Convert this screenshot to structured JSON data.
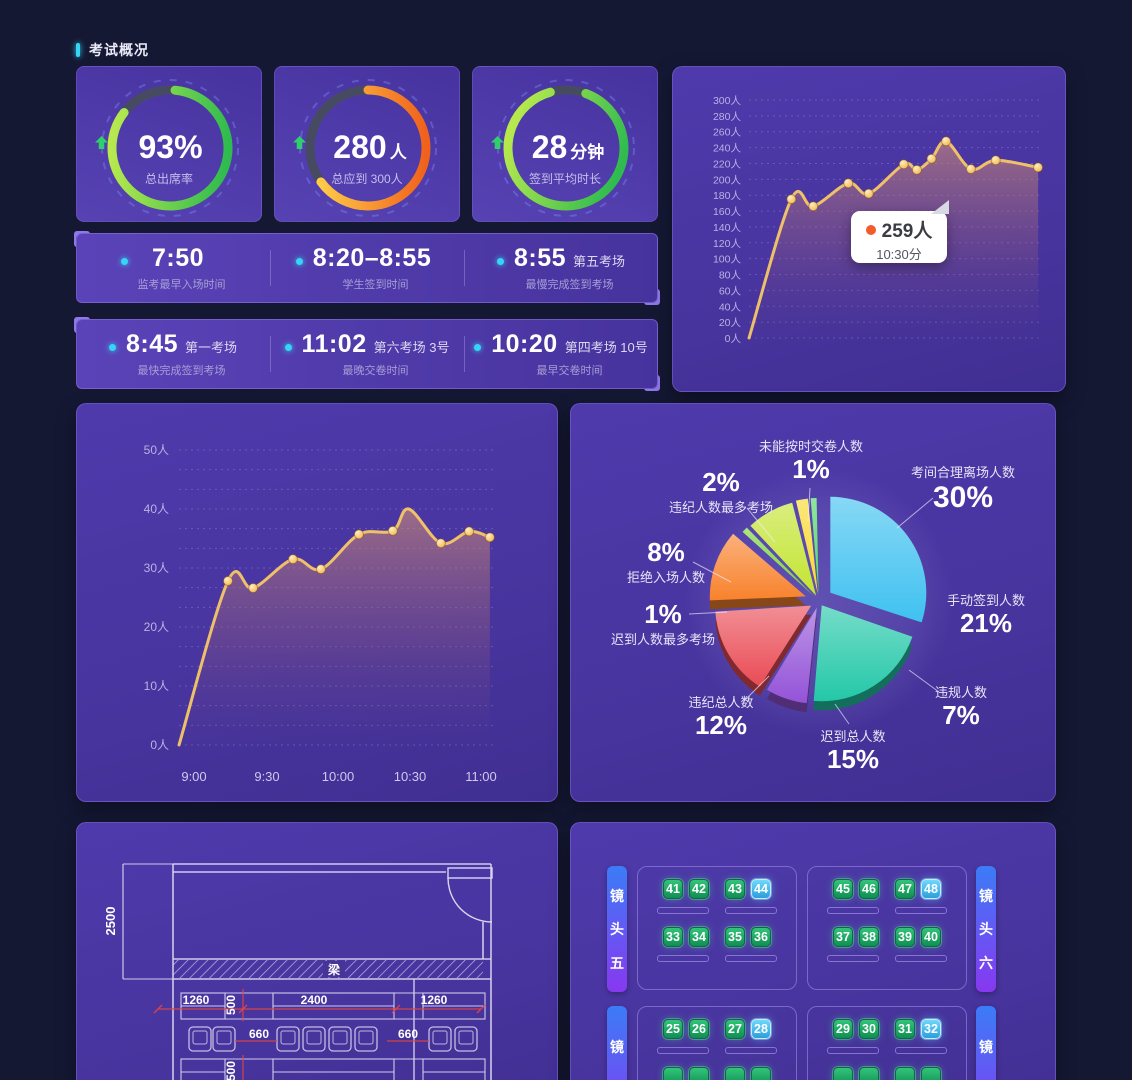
{
  "header": {
    "title": "考试概况"
  },
  "gauges": [
    {
      "value": "93%",
      "unit": "",
      "label": "总出席率",
      "arc": {
        "color": "green",
        "start": 5,
        "frac": 0.84
      }
    },
    {
      "value": "280",
      "unit": "人",
      "label": "总应到 300人",
      "arc": {
        "color": "orange",
        "start": 0,
        "frac": 0.65
      }
    },
    {
      "value": "28",
      "unit": "分钟",
      "label": "签到平均时长",
      "arc": {
        "color": "green",
        "start": 20,
        "frac": 0.9
      }
    }
  ],
  "time_stats": [
    {
      "time": "7:50",
      "tag": "",
      "label": "监考最早入场时间"
    },
    {
      "time": "8:20–8:55",
      "tag": "",
      "label": "学生签到时间"
    },
    {
      "time": "8:55",
      "tag": "第五考场",
      "label": "最慢完成签到考场"
    },
    {
      "time": "8:45",
      "tag": "第一考场",
      "label": "最快完成签到考场"
    },
    {
      "time": "11:02",
      "tag": "第六考场 3号",
      "label": "最晚交卷时间"
    },
    {
      "time": "10:20",
      "tag": "第四考场 10号",
      "label": "最早交卷时间"
    }
  ],
  "chart_data": [
    {
      "type": "line",
      "name": "attendance_trend",
      "ylim": [
        0,
        300
      ],
      "y_ticks": [
        "0人",
        "20人",
        "40人",
        "60人",
        "80人",
        "100人",
        "120人",
        "140人",
        "160人",
        "180人",
        "200人",
        "220人",
        "240人",
        "260人",
        "280人",
        "300人"
      ],
      "x": [
        0,
        0.145,
        0.22,
        0.34,
        0.41,
        0.53,
        0.575,
        0.625,
        0.675,
        0.76,
        0.845,
        0.99
      ],
      "values": [
        0,
        175,
        166,
        195,
        182,
        219,
        212,
        226,
        248,
        213,
        224,
        215
      ],
      "no_marker": [
        0
      ],
      "line_color": "#f7c766",
      "tooltip": {
        "value": "259人",
        "time": "10:30分"
      }
    },
    {
      "type": "line",
      "name": "signin_trend",
      "ylim": [
        0,
        50
      ],
      "y_ticks": [
        "0人",
        "10人",
        "20人",
        "30人",
        "40人",
        "50人"
      ],
      "x_ticks": [
        "9:00",
        "9:30",
        "10:00",
        "10:30",
        "11:00"
      ],
      "x": [
        0,
        0.156,
        0.236,
        0.363,
        0.452,
        0.573,
        0.681,
        0.732,
        0.834,
        0.924,
        0.99
      ],
      "values": [
        0,
        27.8,
        26.6,
        31.5,
        29.8,
        35.7,
        36.3,
        40,
        34.2,
        36.2,
        35.2
      ],
      "no_marker": [
        0,
        7
      ],
      "line_color": "#f7c766"
    },
    {
      "type": "pie",
      "name": "exam_stats",
      "slices": [
        {
          "label": "考间合理离场人数",
          "pct": 30,
          "color": "#3fc1f0",
          "explode": 14
        },
        {
          "label": "手动签到人数",
          "pct": 21,
          "color": "#23c8a8",
          "explode": 5
        },
        {
          "label": "违规人数",
          "pct": 7,
          "color": "#9453d8",
          "explode": 7
        },
        {
          "label": "迟到总人数",
          "pct": 15,
          "color": "#ea4b55",
          "explode": 9
        },
        {
          "label": "违纪总人数",
          "pct": 12,
          "color": "#f8822c",
          "explode": 14
        },
        {
          "label": "迟到人数最多考场",
          "pct": 1,
          "color": "#7ad338",
          "explode": 7
        },
        {
          "label": "拒绝入场人数",
          "pct": 8,
          "color": "#c3e430",
          "explode": 6
        },
        {
          "label": "违纪人数最多考场",
          "pct": 2,
          "color": "#f8d92c",
          "explode": 7
        },
        {
          "label": "未能按时交卷人数",
          "pct": 1,
          "color": "#4dd865",
          "explode": 7
        }
      ]
    }
  ],
  "floor_plan": {
    "beam_label": "梁",
    "dim_height": "2500",
    "dim_left": "1260",
    "dim_center": "2400",
    "dim_right": "1260",
    "dim_depth_top": "500",
    "dim_depth_bottom": "500",
    "dim_gap_left": "660",
    "dim_gap_right": "660"
  },
  "seat_map": {
    "sections": [
      {
        "left_camera": "镜头五",
        "right_camera": "镜头六",
        "groups": [
          {
            "rows": [
              [
                "41",
                "42",
                "43",
                "44"
              ],
              [
                "33",
                "34",
                "35",
                "36"
              ]
            ]
          },
          {
            "rows": [
              [
                "45",
                "46",
                "47",
                "48"
              ],
              [
                "37",
                "38",
                "39",
                "40"
              ]
            ]
          }
        ]
      },
      {
        "left_camera": "镜头",
        "right_camera": "镜头",
        "groups": [
          {
            "rows": [
              [
                "25",
                "26",
                "27",
                "28"
              ],
              [
                "",
                "",
                "",
                ""
              ]
            ]
          },
          {
            "rows": [
              [
                "29",
                "30",
                "31",
                "32"
              ],
              [
                "",
                "",
                "",
                ""
              ]
            ]
          }
        ]
      }
    ],
    "highlighted": [
      "44",
      "48",
      "28",
      "32"
    ]
  },
  "colors": {
    "background": "#141833",
    "panel": "#49359f",
    "accent_cyan": "#35d6f4",
    "ring_green": "#3ec24b",
    "ring_orange": "#f0611c",
    "line_gold": "#f7c766",
    "seat_green": "#1ea05e",
    "seat_selected": "#4fc3f2",
    "dim_red": "#e04545"
  }
}
